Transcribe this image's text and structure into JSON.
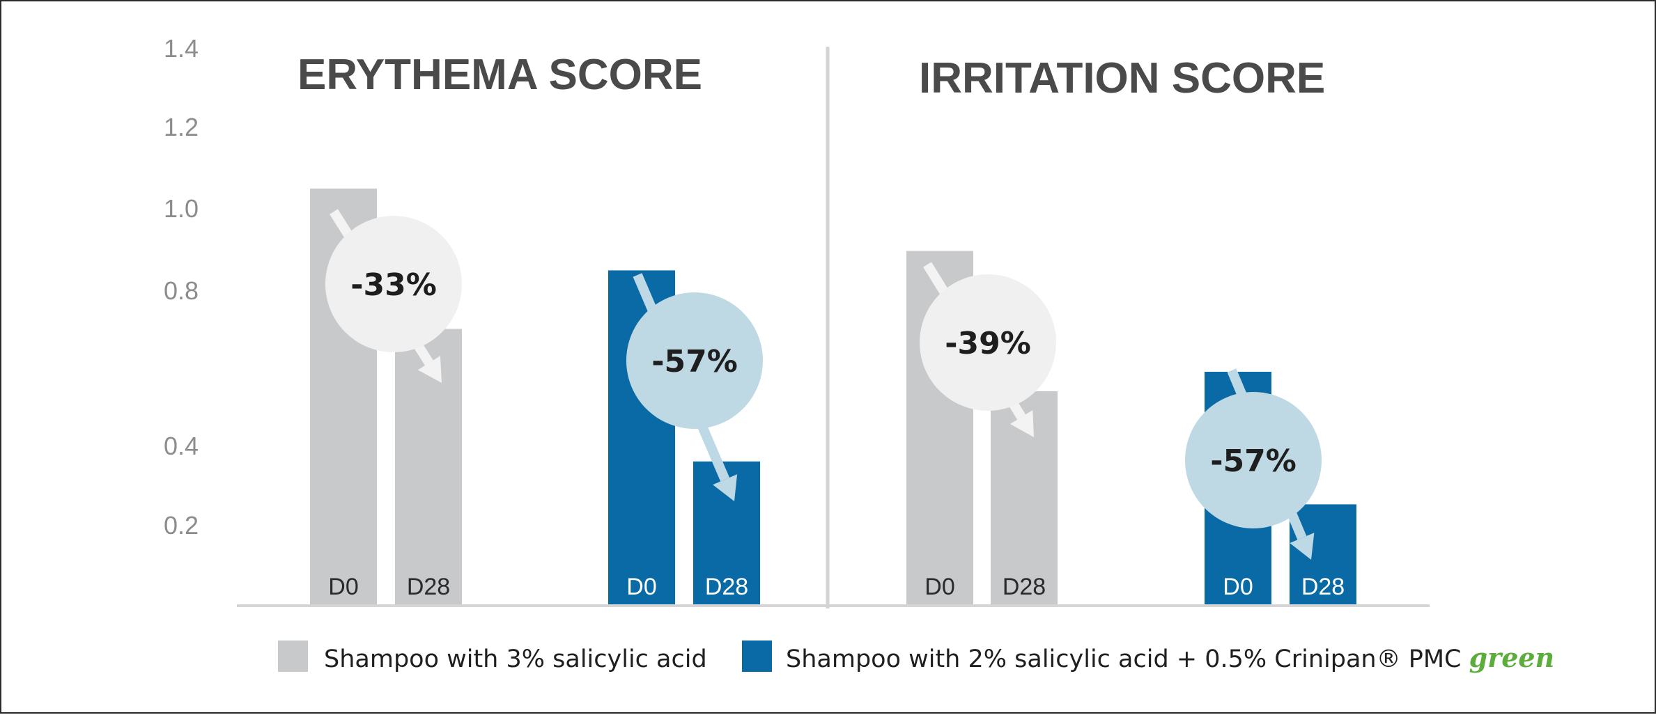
{
  "colors": {
    "gray_bar": "#c8c9cb",
    "blue_bar": "#0a6aa6",
    "gray_circle": "#f0f0f0",
    "blue_circle": "#bfd9e4",
    "gray_arrow": "#f3f3f3",
    "blue_arrow": "#bed9e6",
    "green_text": "#5cad3c"
  },
  "chart_data": {
    "type": "bar",
    "y_ticks": [
      "1.4",
      "1.2",
      "1.0",
      "0.8",
      "0.4",
      "0.2"
    ],
    "panels": [
      {
        "title": "ERYTHEMA SCORE",
        "categories": [
          "D0",
          "D28"
        ],
        "series": [
          {
            "name": "Shampoo with 3% salicylic acid",
            "values": [
              1.07,
              0.71
            ],
            "change_label": "-33%"
          },
          {
            "name": "Shampoo with 2% salicylic acid + 0.5% Crinipan® PMC green",
            "values": [
              0.86,
              0.37
            ],
            "change_label": "-57%"
          }
        ]
      },
      {
        "title": "IRRITATION SCORE",
        "categories": [
          "D0",
          "D28"
        ],
        "series": [
          {
            "name": "Shampoo with 3% salicylic acid",
            "values": [
              0.91,
              0.55
            ],
            "change_label": "-39%"
          },
          {
            "name": "Shampoo with 2% salicylic acid + 0.5% Crinipan® PMC green",
            "values": [
              0.6,
              0.26
            ],
            "change_label": "-57%"
          }
        ]
      }
    ],
    "legend": [
      {
        "text": "Shampoo with 3% salicylic acid",
        "color": "#c8c9cb"
      },
      {
        "text": "Shampoo with 2% salicylic acid + 0.5% Crinipan® PMC ",
        "suffix": "green",
        "color": "#0a6aa6"
      }
    ],
    "legend_position": "bottom"
  }
}
